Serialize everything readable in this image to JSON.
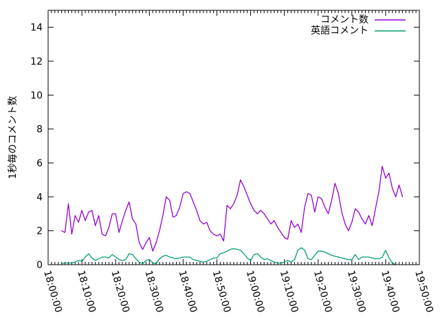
{
  "chart_data": {
    "type": "line",
    "title": "",
    "xlabel": "",
    "ylabel": "1秒毎のコメント数",
    "background": "#ffffff",
    "border_color": "#000000",
    "grid": false,
    "legend_position": "top-right-inside",
    "x_axis": {
      "kind": "time",
      "range_min": [
        0,
        110
      ],
      "major_interval_min": 10,
      "minor_interval_min": 1,
      "tick_labels": [
        "18:00:00",
        "18:10:00",
        "18:20:00",
        "18:30:00",
        "18:40:00",
        "18:50:00",
        "19:00:00",
        "19:10:00",
        "19:20:00",
        "19:30:00",
        "19:40:00",
        "19:50:00"
      ],
      "label_rotation_deg": 74
    },
    "y_axis": {
      "ylim": [
        0,
        15
      ],
      "tick_step": 2,
      "tick_labels": [
        "0",
        "2",
        "4",
        "6",
        "8",
        "10",
        "12",
        "14"
      ]
    },
    "series": [
      {
        "name": "コメント数",
        "color": "#9400d3",
        "start_min": 4,
        "step_min": 1,
        "values": [
          2.0,
          1.9,
          3.6,
          1.8,
          2.9,
          2.5,
          3.2,
          2.6,
          3.1,
          3.2,
          2.3,
          2.9,
          1.8,
          1.7,
          2.2,
          3.0,
          3.0,
          1.9,
          2.6,
          3.2,
          3.7,
          2.7,
          2.4,
          1.3,
          0.9,
          1.3,
          1.6,
          0.8,
          1.3,
          2.0,
          2.9,
          4.0,
          3.8,
          2.8,
          2.9,
          3.4,
          4.2,
          4.3,
          4.2,
          3.7,
          3.2,
          2.6,
          2.4,
          2.5,
          2.0,
          1.8,
          1.7,
          1.8,
          1.4,
          3.5,
          3.3,
          3.6,
          4.1,
          5.0,
          4.6,
          4.1,
          3.6,
          3.2,
          3.0,
          3.2,
          3.0,
          2.7,
          2.4,
          2.6,
          2.2,
          1.9,
          1.6,
          1.5,
          2.6,
          2.2,
          2.4,
          1.9,
          3.4,
          4.2,
          4.1,
          3.1,
          4.0,
          3.9,
          3.4,
          3.0,
          3.8,
          4.8,
          4.2,
          3.1,
          2.4,
          2.0,
          2.5,
          3.3,
          3.1,
          2.7,
          2.4,
          2.9,
          2.3,
          3.3,
          4.3,
          5.8,
          5.1,
          5.4,
          4.5,
          4.0,
          4.7,
          4.0
        ]
      },
      {
        "name": "英語コメント",
        "color": "#009e73",
        "start_min": 4,
        "step_min": 1,
        "values": [
          0.05,
          0.1,
          0.1,
          0.1,
          0.15,
          0.25,
          0.2,
          0.45,
          0.65,
          0.4,
          0.25,
          0.35,
          0.45,
          0.45,
          0.4,
          0.6,
          0.45,
          0.3,
          0.25,
          0.3,
          0.65,
          0.6,
          0.35,
          0.15,
          0.05,
          0.25,
          0.3,
          0.1,
          0.05,
          0.35,
          0.5,
          0.55,
          0.45,
          0.4,
          0.35,
          0.4,
          0.45,
          0.45,
          0.45,
          0.3,
          0.25,
          0.2,
          0.15,
          0.2,
          0.3,
          0.4,
          0.4,
          0.65,
          0.7,
          0.8,
          0.9,
          0.95,
          0.9,
          0.85,
          0.65,
          0.4,
          0.25,
          0.6,
          0.65,
          0.45,
          0.3,
          0.35,
          0.25,
          0.15,
          0.1,
          0.1,
          0.15,
          0.25,
          0.15,
          0.3,
          0.85,
          1.0,
          0.85,
          0.35,
          0.3,
          0.55,
          0.8,
          0.8,
          0.75,
          0.65,
          0.55,
          0.5,
          0.45,
          0.4,
          0.35,
          0.3,
          0.3,
          0.6,
          0.3,
          0.45,
          0.45,
          0.45,
          0.4,
          0.35,
          0.35,
          0.45,
          0.85,
          0.4,
          0.1,
          0.0
        ]
      }
    ]
  }
}
